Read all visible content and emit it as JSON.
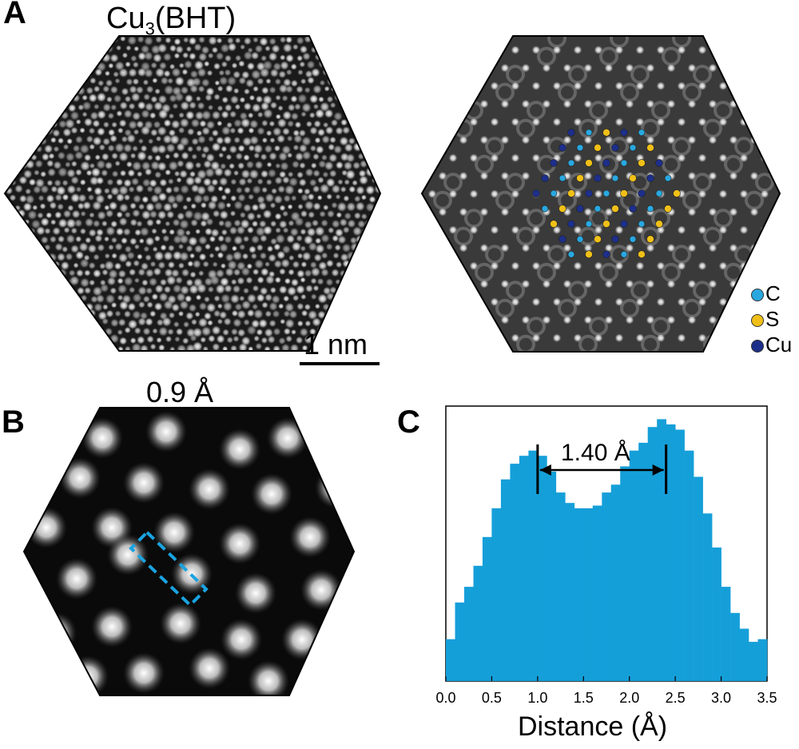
{
  "panels": {
    "a": {
      "letter": "A",
      "title": "Cu",
      "title_sub": "3",
      "title_tail": "(BHT)",
      "scalebar": "1 nm"
    },
    "b": {
      "letter": "B",
      "title": "0.9 Å"
    },
    "c": {
      "letter": "C",
      "annotation": "1.40 Å"
    }
  },
  "legend": [
    {
      "label": "C",
      "color": "#29a8e0"
    },
    {
      "label": "S",
      "color": "#f0c018"
    },
    {
      "label": "Cu",
      "color": "#1d2f8a"
    }
  ],
  "colors": {
    "bar": "#159fd9",
    "box": "#1aa3e0"
  },
  "chart_data": {
    "type": "bar",
    "title": "",
    "xlabel": "Distance (Å)",
    "ylabel": "",
    "xlim": [
      0.0,
      3.5
    ],
    "xticks": [
      "0.0",
      "0.5",
      "1.0",
      "1.5",
      "2.0",
      "2.5",
      "3.0",
      "3.5"
    ],
    "bin_width": 0.1,
    "x": [
      0.0,
      0.1,
      0.2,
      0.3,
      0.4,
      0.5,
      0.6,
      0.7,
      0.8,
      0.9,
      1.0,
      1.1,
      1.2,
      1.3,
      1.4,
      1.5,
      1.6,
      1.7,
      1.8,
      1.9,
      2.0,
      2.1,
      2.2,
      2.3,
      2.4,
      2.5,
      2.6,
      2.7,
      2.8,
      2.9,
      3.0,
      3.1,
      3.2,
      3.3,
      3.4
    ],
    "values": [
      0.16,
      0.3,
      0.36,
      0.44,
      0.55,
      0.66,
      0.77,
      0.83,
      0.86,
      0.88,
      0.86,
      0.8,
      0.72,
      0.68,
      0.66,
      0.66,
      0.67,
      0.72,
      0.75,
      0.82,
      0.88,
      0.91,
      0.97,
      1.0,
      0.98,
      0.96,
      0.88,
      0.78,
      0.64,
      0.51,
      0.36,
      0.26,
      0.2,
      0.15,
      0.16
    ],
    "ylim": [
      0,
      1.05
    ],
    "markers": [
      1.0,
      2.4
    ]
  }
}
